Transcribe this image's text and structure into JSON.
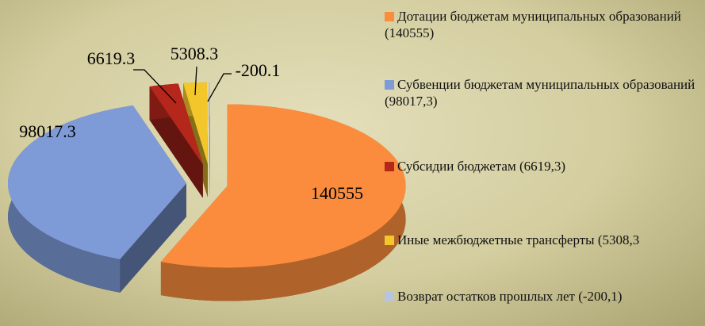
{
  "chart_data": {
    "type": "pie",
    "categories": [
      "Дотации бюджетам муниципальных образований (140555)",
      "Субвенции бюджетам муниципальных образований (98017,3)",
      "Субсидии бюджетам (6619,3)",
      "Иные межбюджетные трансферты (5308,3",
      "Возврат остатков прошлых лет (-200,1)"
    ],
    "values": [
      140555,
      98017.3,
      6619.3,
      5308.3,
      -200.1
    ],
    "colors": [
      "#fb8c3e",
      "#7e9bd8",
      "#b5261b",
      "#f3c72c",
      "#b8c3dc"
    ],
    "legend": "right"
  }
}
